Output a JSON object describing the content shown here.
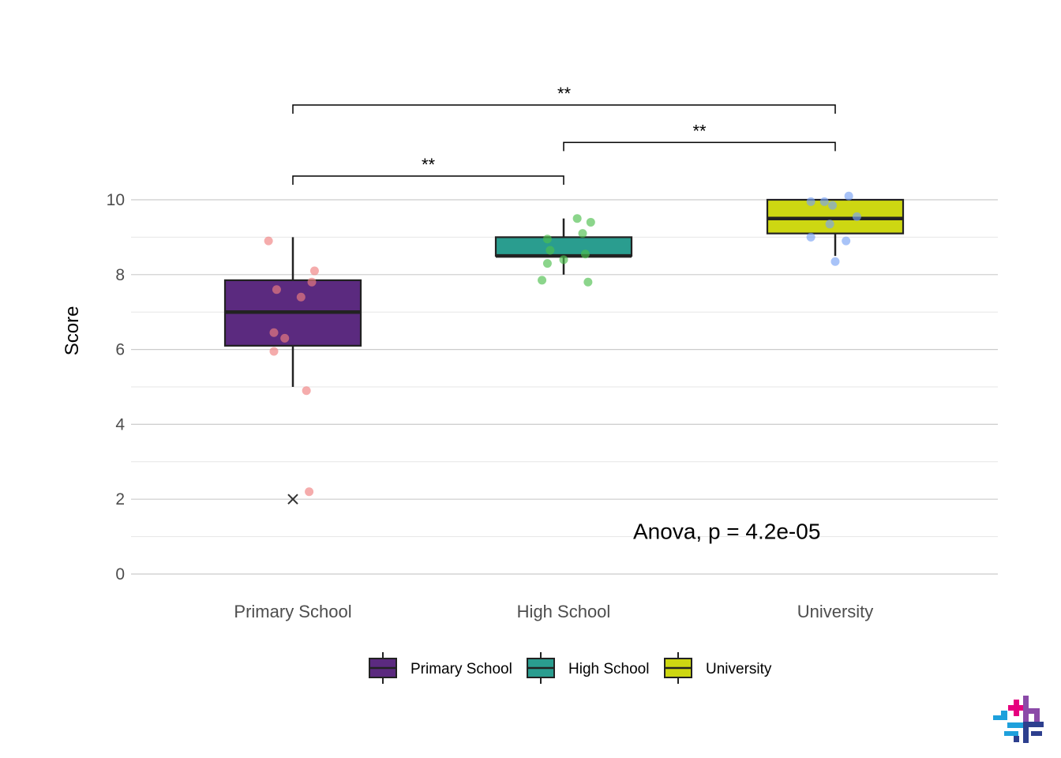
{
  "chart_data": {
    "type": "box",
    "ylabel": "Score",
    "xlabel": "",
    "ylim": [
      -0.3,
      11.5
    ],
    "yticks": [
      0,
      2,
      4,
      6,
      8,
      10
    ],
    "yticks_minor": [
      1,
      3,
      5,
      7,
      9
    ],
    "grid": true,
    "legend_position": "bottom",
    "categories": [
      "Primary School",
      "High School",
      "University"
    ],
    "series": [
      {
        "name": "Primary School",
        "fill": "#5b2a7f",
        "point_color": "#f08080",
        "q1": 6.1,
        "median": 7.0,
        "q3": 7.85,
        "whisker_low": 5.0,
        "whisker_high": 9.0,
        "outliers": [
          2.0
        ],
        "points": [
          {
            "dx": -0.09,
            "y": 8.9
          },
          {
            "dx": 0.08,
            "y": 8.1
          },
          {
            "dx": 0.07,
            "y": 7.8
          },
          {
            "dx": -0.06,
            "y": 7.6
          },
          {
            "dx": 0.03,
            "y": 7.4
          },
          {
            "dx": -0.07,
            "y": 6.45
          },
          {
            "dx": -0.03,
            "y": 6.3
          },
          {
            "dx": -0.07,
            "y": 5.95
          },
          {
            "dx": 0.05,
            "y": 4.9
          },
          {
            "dx": 0.06,
            "y": 2.2
          }
        ]
      },
      {
        "name": "High School",
        "fill": "#2a9d8f",
        "point_color": "#4dbf4d",
        "q1": 8.5,
        "median": 8.5,
        "q3": 9.0,
        "whisker_low": 8.0,
        "whisker_high": 9.5,
        "outliers": [],
        "points": [
          {
            "dx": 0.05,
            "y": 9.5
          },
          {
            "dx": 0.1,
            "y": 9.4
          },
          {
            "dx": 0.07,
            "y": 9.1
          },
          {
            "dx": -0.06,
            "y": 8.95
          },
          {
            "dx": -0.05,
            "y": 8.65
          },
          {
            "dx": 0.08,
            "y": 8.55
          },
          {
            "dx": 0.0,
            "y": 8.4
          },
          {
            "dx": -0.06,
            "y": 8.3
          },
          {
            "dx": -0.08,
            "y": 7.85
          },
          {
            "dx": 0.09,
            "y": 7.8
          }
        ]
      },
      {
        "name": "University",
        "fill": "#cdd712",
        "point_color": "#7aa3f5",
        "q1": 9.1,
        "median": 9.5,
        "q3": 10.0,
        "whisker_low": 8.5,
        "whisker_high": 10.0,
        "outliers": [],
        "points": [
          {
            "dx": 0.05,
            "y": 10.1
          },
          {
            "dx": -0.04,
            "y": 9.95
          },
          {
            "dx": -0.09,
            "y": 9.95
          },
          {
            "dx": -0.01,
            "y": 9.85
          },
          {
            "dx": 0.08,
            "y": 9.55
          },
          {
            "dx": -0.02,
            "y": 9.35
          },
          {
            "dx": -0.09,
            "y": 9.0
          },
          {
            "dx": 0.04,
            "y": 8.9
          },
          {
            "dx": 0.0,
            "y": 8.35
          }
        ]
      }
    ],
    "comparisons": [
      {
        "from": 0,
        "to": 1,
        "y": 10.4,
        "label": "**"
      },
      {
        "from": 1,
        "to": 2,
        "y": 11.3,
        "label": "**"
      },
      {
        "from": 0,
        "to": 2,
        "y": 12.3,
        "label": "**"
      }
    ],
    "annotation": "Anova, p = 4.2e-05"
  },
  "logo": {
    "colors": [
      "#e6007e",
      "#1ea0dc",
      "#8b4aa8",
      "#2d3f8e"
    ]
  }
}
